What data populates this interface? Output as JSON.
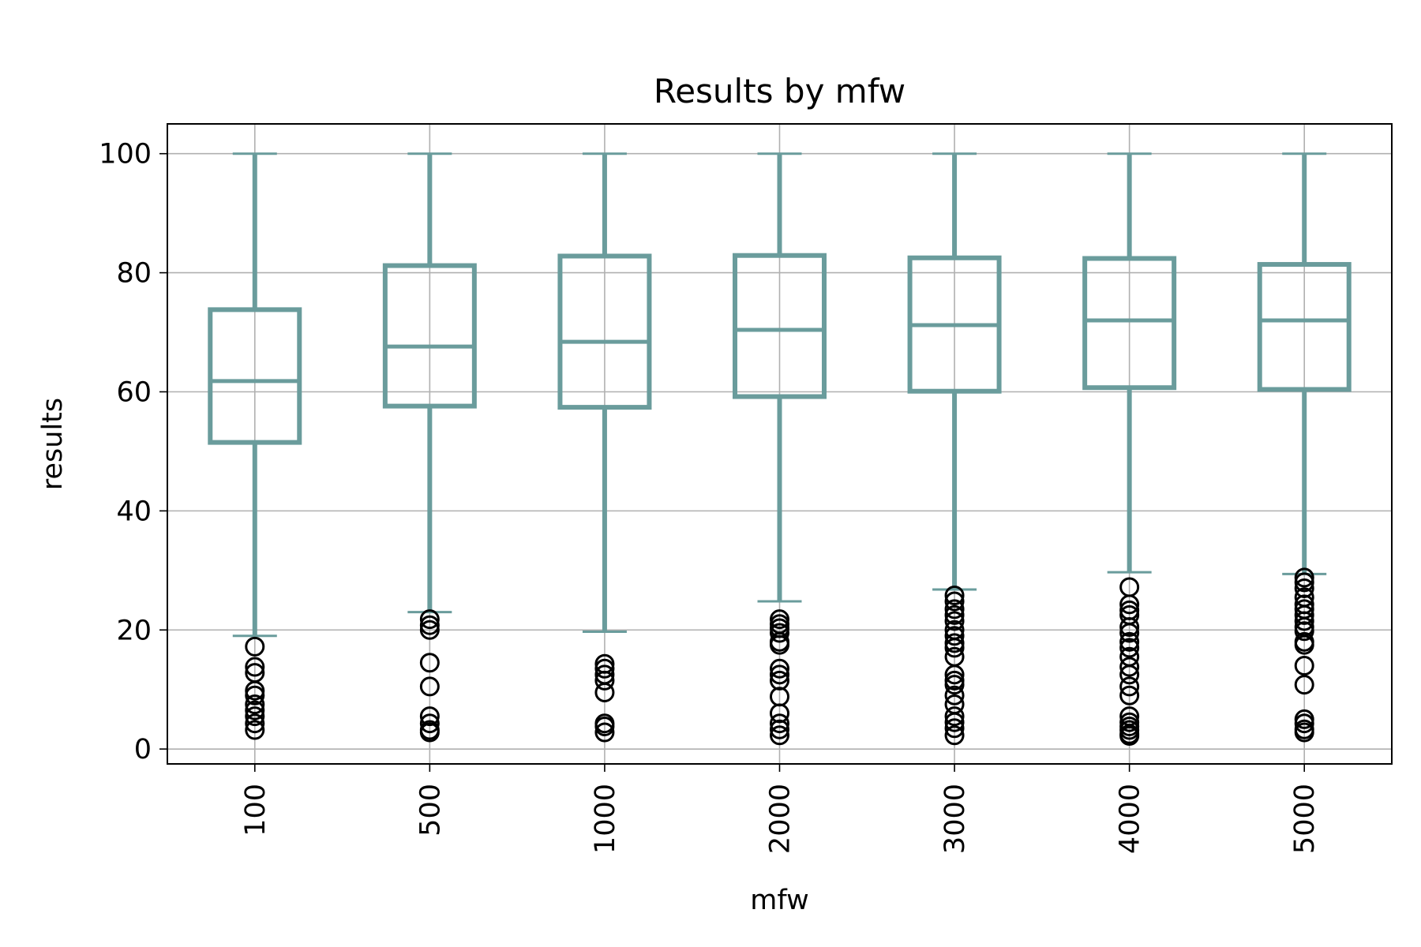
{
  "chart_data": {
    "type": "box",
    "title": "Results by mfw",
    "xlabel": "mfw",
    "ylabel": "results",
    "categories": [
      "100",
      "500",
      "1000",
      "2000",
      "3000",
      "4000",
      "5000"
    ],
    "ylim": [
      -2.5,
      105
    ],
    "yticks": [
      0,
      20,
      40,
      60,
      80,
      100
    ],
    "grid": true,
    "x_tick_rotation": 90,
    "box_color": "#6a9c9c",
    "flier_color": "#000000",
    "boxes": [
      {
        "category": "100",
        "whisker_low": 19,
        "q1": 51.5,
        "median": 61.8,
        "q3": 73.8,
        "whisker_high": 100,
        "outliers": [
          17.2,
          13.8,
          12.8,
          9.8,
          9,
          7.5,
          6.5,
          5.5,
          4.3,
          3.2
        ]
      },
      {
        "category": "500",
        "whisker_low": 23,
        "q1": 57.6,
        "median": 67.6,
        "q3": 81.2,
        "whisker_high": 100,
        "outliers": [
          21.8,
          20.8,
          20,
          14.5,
          10.5,
          5.5,
          4.3,
          3.2,
          2.8
        ]
      },
      {
        "category": "1000",
        "whisker_low": 19.7,
        "q1": 57.4,
        "median": 68.4,
        "q3": 82.8,
        "whisker_high": 100,
        "outliers": [
          14.3,
          13.5,
          12.5,
          11.5,
          9.5,
          4.3,
          3.8,
          2.8
        ]
      },
      {
        "category": "2000",
        "whisker_low": 24.8,
        "q1": 59.2,
        "median": 70.4,
        "q3": 82.9,
        "whisker_high": 100,
        "outliers": [
          21.8,
          21,
          20.3,
          19.5,
          18,
          17.5,
          13.5,
          12.5,
          11.5,
          8.8,
          6,
          4.3,
          3.3,
          2.3
        ]
      },
      {
        "category": "3000",
        "whisker_low": 26.8,
        "q1": 60.1,
        "median": 71.2,
        "q3": 82.5,
        "whisker_high": 100,
        "outliers": [
          25.8,
          24.8,
          23.5,
          22.5,
          21.5,
          20,
          19,
          17.8,
          17,
          15.5,
          12.5,
          11.5,
          10.8,
          9,
          7.5,
          5.5,
          4.5,
          3.5,
          2.3
        ]
      },
      {
        "category": "4000",
        "whisker_low": 29.7,
        "q1": 60.7,
        "median": 72,
        "q3": 82.4,
        "whisker_high": 100,
        "outliers": [
          27.2,
          24.3,
          23.3,
          22.5,
          20.5,
          19.5,
          18,
          17,
          15.5,
          13.8,
          12.5,
          10.5,
          9,
          5.5,
          4.5,
          3.8,
          3.2,
          2.5,
          2.2
        ]
      },
      {
        "category": "5000",
        "whisker_low": 29.4,
        "q1": 60.4,
        "median": 72,
        "q3": 81.4,
        "whisker_high": 100,
        "outliers": [
          28.8,
          28,
          27,
          25.5,
          24.3,
          23.5,
          22.5,
          21.5,
          20.5,
          19.8,
          18,
          17.5,
          14,
          10.8,
          5,
          4.3,
          3.3,
          2.8
        ]
      }
    ]
  }
}
